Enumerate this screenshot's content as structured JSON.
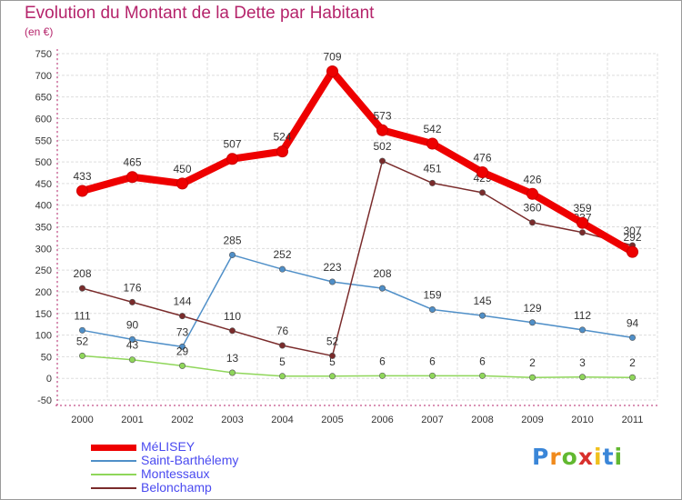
{
  "chart_data": {
    "type": "line",
    "title": "Evolution du Montant de la Dette par Habitant",
    "subtitle": "(en €)",
    "x": [
      "2000",
      "2001",
      "2002",
      "2003",
      "2004",
      "2005",
      "2006",
      "2007",
      "2008",
      "2009",
      "2010",
      "2011"
    ],
    "yticks": [
      "-50",
      "0",
      "50",
      "100",
      "150",
      "200",
      "250",
      "300",
      "350",
      "400",
      "450",
      "500",
      "550",
      "600",
      "650",
      "700",
      "750"
    ],
    "ylim": [
      -50,
      750
    ],
    "grid": true,
    "legend_position": "bottom-left",
    "series": [
      {
        "name": "MéLISEY",
        "color": "#ee0000",
        "values": [
          433,
          465,
          450,
          507,
          524,
          709,
          573,
          542,
          476,
          426,
          359,
          292
        ]
      },
      {
        "name": "Saint-Barthélemy",
        "color": "#4f8fc8",
        "values": [
          111,
          90,
          73,
          285,
          252,
          223,
          208,
          159,
          145,
          129,
          112,
          94
        ]
      },
      {
        "name": "Montessaux",
        "color": "#8fd65a",
        "values": [
          52,
          43,
          29,
          13,
          5,
          5,
          6,
          6,
          6,
          2,
          3,
          2
        ]
      },
      {
        "name": "Belonchamp",
        "color": "#7a2b2b",
        "values": [
          208,
          176,
          144,
          110,
          76,
          52,
          502,
          451,
          429,
          360,
          337,
          307
        ]
      }
    ]
  },
  "logo": {
    "letters": [
      "P",
      "r",
      "o",
      "x",
      "i",
      "t",
      "i"
    ],
    "colors": [
      "#3a86d8",
      "#f08a1c",
      "#62b830",
      "#d8302c",
      "#f0c01c",
      "#3a86d8",
      "#62b830"
    ]
  }
}
